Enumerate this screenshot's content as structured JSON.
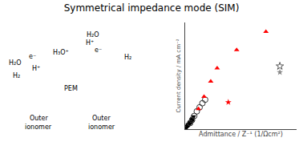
{
  "chart_data": {
    "type": "scatter",
    "title": "Symmetrical impedance mode (SIM)",
    "x_label": "Admittance / Z⁻¹ (1/Ωcm²)",
    "y_label": "Current density / mA cm⁻²",
    "xlim": [
      0,
      0.4
    ],
    "ylim": [
      0,
      1.05
    ],
    "tick_labels": false,
    "grid": false,
    "annotations": [
      "e⁻",
      "H₂O",
      "H₂",
      "H⁺",
      "H₃O⁺",
      "PEM",
      "e⁻",
      "H₂O",
      "H⁺",
      "H₂",
      "Outer",
      "ionomer",
      "Outer",
      "ionomer"
    ],
    "series": [
      {
        "color": "black",
        "marker": "triangle-down",
        "x": [
          0.003,
          0.006,
          0.009,
          0.012,
          0.015,
          0.018,
          0.021,
          0.024,
          0.027,
          0.03
        ],
        "values": [
          0.01,
          0.018,
          0.028,
          0.038,
          0.05,
          0.062,
          0.075,
          0.09,
          0.108,
          0.125
        ]
      },
      {
        "color": "black",
        "marker": "circle",
        "x": [
          0.01,
          0.018,
          0.025
        ],
        "values": [
          0.04,
          0.065,
          0.092
        ]
      },
      {
        "color": "#333333",
        "marker": "circle-open",
        "x": [
          0.018,
          0.025,
          0.033,
          0.042,
          0.052,
          0.062,
          0.072
        ],
        "values": [
          0.06,
          0.09,
          0.13,
          0.175,
          0.215,
          0.255,
          0.29
        ]
      },
      {
        "color": "red",
        "marker": "triangle-up",
        "x": [
          0.048,
          0.068,
          0.092,
          0.115,
          0.185,
          0.29
        ],
        "values": [
          0.2,
          0.32,
          0.47,
          0.6,
          0.78,
          0.96
        ]
      },
      {
        "color": "red",
        "marker": "star",
        "x": [
          0.155
        ],
        "values": [
          0.265
        ]
      },
      {
        "color": "#555555",
        "marker": "star-open",
        "x": [
          0.34
        ],
        "values": [
          0.62
        ]
      },
      {
        "color": "#888888",
        "marker": "star",
        "x": [
          0.34
        ],
        "values": [
          0.56
        ]
      }
    ]
  }
}
